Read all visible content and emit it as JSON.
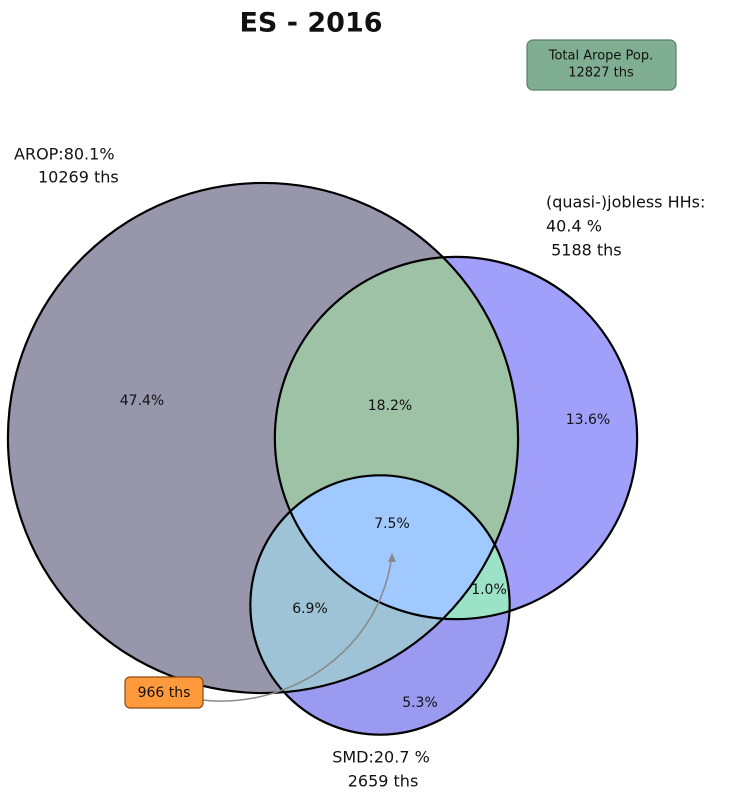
{
  "chart_data": {
    "type": "venn",
    "title": "ES - 2016",
    "total": [
      "Total Arope Pop.",
      "12827 ths"
    ],
    "sets": [
      {
        "name": "AROP",
        "value": 80.1,
        "color": "#9896ab",
        "label": [
          "AROP:80.1%",
          "10269 ths"
        ]
      },
      {
        "name": "(quasi-)jobless HHs",
        "value": 40.4,
        "color": "#a0a0fb",
        "label": [
          "(quasi-)jobless HHs:",
          "40.4 %",
          " 5188 ths"
        ]
      },
      {
        "name": "SMD",
        "value": 20.7,
        "color": "#9a9af0",
        "label": [
          "SMD:20.7 %",
          "2659 ths"
        ]
      }
    ],
    "regions": {
      "values": [
        47.4,
        18.2,
        13.6,
        7.5,
        6.9,
        1.0,
        5.3
      ],
      "value_labels": [
        "47.4%",
        "18.2%",
        "13.6%",
        "7.5%",
        "6.9%",
        "1.0%",
        "5.3%"
      ]
    },
    "annotation": "966 ths"
  }
}
